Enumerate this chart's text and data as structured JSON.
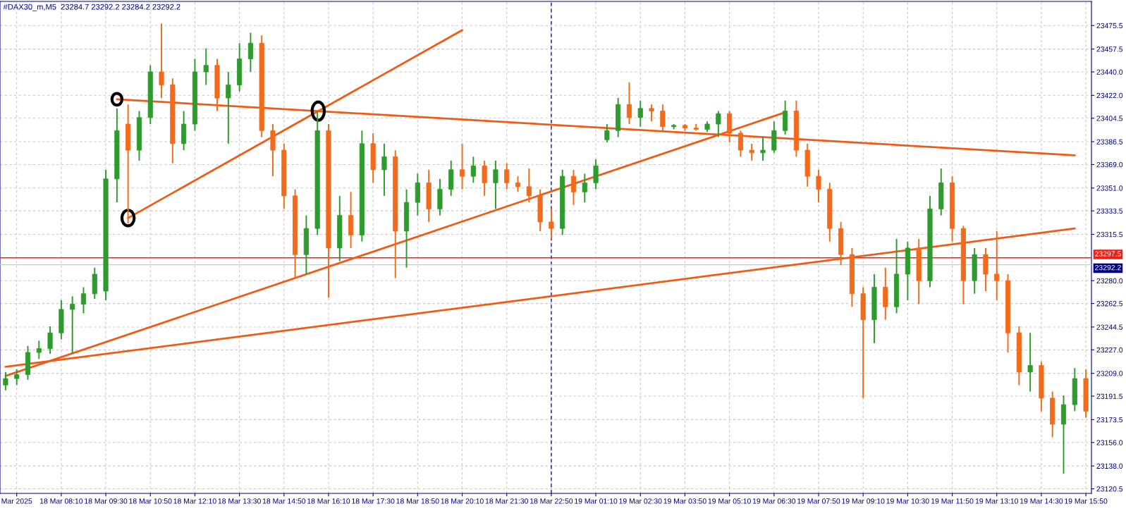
{
  "chart_data": {
    "type": "candlestick",
    "title": "#DAX30_m,M5  23284.7 23292.2 23284.2 23292.2",
    "categories": [
      null,
      "Mar 2025",
      null,
      null,
      null,
      "18 Mar 08:10",
      null,
      null,
      null,
      "18 Mar 09:30",
      null,
      null,
      null,
      "18 Mar 10:50",
      null,
      null,
      null,
      "18 Mar 12:10",
      null,
      null,
      null,
      "18 Mar 13:30",
      null,
      null,
      null,
      "18 Mar 14:50",
      null,
      null,
      null,
      "18 Mar 16:10",
      null,
      null,
      null,
      "18 Mar 17:30",
      null,
      null,
      null,
      "18 Mar 18:50",
      null,
      null,
      null,
      "18 Mar 20:10",
      null,
      null,
      null,
      "18 Mar 21:30",
      null,
      null,
      null,
      "18 Mar 22:50",
      null,
      null,
      null,
      "19 Mar 01:10",
      null,
      null,
      null,
      "19 Mar 02:30",
      null,
      null,
      null,
      "19 Mar 03:50",
      null,
      null,
      null,
      "19 Mar 05:10",
      null,
      null,
      null,
      "19 Mar 06:30",
      null,
      null,
      null,
      "19 Mar 07:50",
      null,
      null,
      null,
      "19 Mar 09:10",
      null,
      null,
      null,
      "19 Mar 10:30",
      null,
      null,
      null,
      "19 Mar 11:50",
      null,
      null,
      null,
      "19 Mar 13:10",
      null,
      null,
      null,
      "19 Mar 14:30",
      null,
      null,
      null,
      "19 Mar 15:50"
    ],
    "ohlc": [
      [
        23200,
        23210,
        23196,
        23205
      ],
      [
        23205,
        23212,
        23200,
        23208
      ],
      [
        23208,
        23230,
        23204,
        23225
      ],
      [
        23225,
        23234,
        23220,
        23228
      ],
      [
        23228,
        23245,
        23224,
        23240
      ],
      [
        23240,
        23265,
        23235,
        23258
      ],
      [
        23258,
        23268,
        23224,
        23262
      ],
      [
        23262,
        23275,
        23255,
        23270
      ],
      [
        23270,
        23290,
        23266,
        23285
      ],
      [
        23272,
        23365,
        23265,
        23358
      ],
      [
        23358,
        23412,
        23340,
        23395
      ],
      [
        23400,
        23415,
        23324,
        23380
      ],
      [
        23380,
        23410,
        23372,
        23405
      ],
      [
        23405,
        23445,
        23400,
        23440
      ],
      [
        23440,
        23477,
        23420,
        23430
      ],
      [
        23430,
        23435,
        23370,
        23385
      ],
      [
        23385,
        23410,
        23380,
        23400
      ],
      [
        23400,
        23450,
        23395,
        23440
      ],
      [
        23440,
        23458,
        23430,
        23445
      ],
      [
        23445,
        23450,
        23410,
        23420
      ],
      [
        23420,
        23440,
        23385,
        23430
      ],
      [
        23430,
        23462,
        23425,
        23450
      ],
      [
        23450,
        23470,
        23440,
        23462
      ],
      [
        23462,
        23468,
        23390,
        23395
      ],
      [
        23395,
        23400,
        23360,
        23380
      ],
      [
        23380,
        23385,
        23335,
        23345
      ],
      [
        23345,
        23350,
        23282,
        23300
      ],
      [
        23300,
        23330,
        23285,
        23320
      ],
      [
        23320,
        23410,
        23315,
        23395
      ],
      [
        23395,
        23400,
        23267,
        23305
      ],
      [
        23305,
        23345,
        23295,
        23330
      ],
      [
        23330,
        23348,
        23305,
        23315
      ],
      [
        23315,
        23395,
        23310,
        23385
      ],
      [
        23385,
        23393,
        23355,
        23365
      ],
      [
        23365,
        23385,
        23345,
        23375
      ],
      [
        23375,
        23380,
        23282,
        23318
      ],
      [
        23318,
        23350,
        23290,
        23340
      ],
      [
        23340,
        23362,
        23330,
        23355
      ],
      [
        23355,
        23365,
        23325,
        23335
      ],
      [
        23335,
        23358,
        23330,
        23350
      ],
      [
        23350,
        23372,
        23345,
        23365
      ],
      [
        23365,
        23385,
        23350,
        23360
      ],
      [
        23360,
        23375,
        23355,
        23368
      ],
      [
        23368,
        23372,
        23345,
        23355
      ],
      [
        23355,
        23372,
        23335,
        23365
      ],
      [
        23365,
        23370,
        23350,
        23355
      ],
      [
        23355,
        23360,
        23348,
        23352
      ],
      [
        23352,
        23366,
        23340,
        23345
      ],
      [
        23345,
        23350,
        23318,
        23325
      ],
      [
        23325,
        23335,
        23312,
        23320
      ],
      [
        23320,
        23365,
        23315,
        23360
      ],
      [
        23360,
        23365,
        23338,
        23348
      ],
      [
        23348,
        23362,
        23340,
        23355
      ],
      [
        23355,
        23373,
        23350,
        23368
      ],
      [
        23388,
        23400,
        23386,
        23395
      ],
      [
        23395,
        23420,
        23390,
        23415
      ],
      [
        23415,
        23432,
        23400,
        23405
      ],
      [
        23405,
        23418,
        23398,
        23412
      ],
      [
        23412,
        23415,
        23402,
        23410
      ],
      [
        23410,
        23415,
        23395,
        23398
      ],
      [
        23398,
        23400,
        23396,
        23399
      ],
      [
        23399,
        23400,
        23395,
        23397
      ],
      [
        23397,
        23400,
        23395,
        23396
      ],
      [
        23396,
        23402,
        23394,
        23400
      ],
      [
        23400,
        23410,
        23390,
        23408
      ],
      [
        23408,
        23410,
        23386,
        23393
      ],
      [
        23393,
        23395,
        23375,
        23380
      ],
      [
        23380,
        23385,
        23372,
        23378
      ],
      [
        23378,
        23390,
        23372,
        23380
      ],
      [
        23380,
        23402,
        23378,
        23395
      ],
      [
        23395,
        23418,
        23392,
        23410
      ],
      [
        23410,
        23418,
        23375,
        23380
      ],
      [
        23380,
        23385,
        23352,
        23360
      ],
      [
        23360,
        23365,
        23340,
        23350
      ],
      [
        23350,
        23355,
        23310,
        23320
      ],
      [
        23320,
        23325,
        23292,
        23300
      ],
      [
        23300,
        23305,
        23260,
        23270
      ],
      [
        23270,
        23275,
        23190,
        23250
      ],
      [
        23250,
        23285,
        23232,
        23275
      ],
      [
        23275,
        23290,
        23250,
        23260
      ],
      [
        23260,
        23312,
        23255,
        23285
      ],
      [
        23285,
        23310,
        23265,
        23305
      ],
      [
        23305,
        23312,
        23262,
        23280
      ],
      [
        23280,
        23345,
        23275,
        23335
      ],
      [
        23335,
        23366,
        23330,
        23355
      ],
      [
        23355,
        23360,
        23310,
        23320
      ],
      [
        23320,
        23322,
        23262,
        23280
      ],
      [
        23280,
        23305,
        23270,
        23300
      ],
      [
        23300,
        23305,
        23272,
        23285
      ],
      [
        23285,
        23318,
        23265,
        23280
      ],
      [
        23280,
        23285,
        23225,
        23240
      ],
      [
        23240,
        23245,
        23200,
        23210
      ],
      [
        23210,
        23240,
        23195,
        23215
      ],
      [
        23215,
        23218,
        23180,
        23190
      ],
      [
        23190,
        23195,
        23160,
        23170
      ],
      [
        23170,
        23192,
        23132,
        23185
      ],
      [
        23185,
        23213,
        23180,
        23205
      ],
      [
        23205,
        23212,
        23175,
        23180
      ]
    ],
    "colors": [
      "#2e9b2e",
      "#2e9b2e",
      "#2e9b2e",
      "#2e9b2e",
      "#2e9b2e",
      "#2e9b2e",
      "#2e9b2e",
      "#2e9b2e",
      "#2e9b2e",
      "#2e9b2e",
      "#2e9b2e",
      "#f26a1b",
      "#2e9b2e",
      "#2e9b2e",
      "#f26a1b",
      "#f26a1b",
      "#2e9b2e",
      "#2e9b2e",
      "#2e9b2e",
      "#f26a1b",
      "#2e9b2e",
      "#2e9b2e",
      "#2e9b2e",
      "#f26a1b",
      "#f26a1b",
      "#f26a1b",
      "#f26a1b",
      "#2e9b2e",
      "#2e9b2e",
      "#f26a1b",
      "#2e9b2e",
      "#f26a1b",
      "#2e9b2e",
      "#f26a1b",
      "#2e9b2e",
      "#f26a1b",
      "#2e9b2e",
      "#2e9b2e",
      "#f26a1b",
      "#2e9b2e",
      "#2e9b2e",
      "#f26a1b",
      "#2e9b2e",
      "#f26a1b",
      "#2e9b2e",
      "#f26a1b",
      "#f26a1b",
      "#f26a1b",
      "#f26a1b",
      "#f26a1b",
      "#2e9b2e",
      "#f26a1b",
      "#2e9b2e",
      "#2e9b2e",
      "#2e9b2e",
      "#2e9b2e",
      "#f26a1b",
      "#2e9b2e",
      "#f26a1b",
      "#f26a1b",
      "#2e9b2e",
      "#f26a1b",
      "#f26a1b",
      "#2e9b2e",
      "#2e9b2e",
      "#f26a1b",
      "#f26a1b",
      "#f26a1b",
      "#2e9b2e",
      "#2e9b2e",
      "#2e9b2e",
      "#f26a1b",
      "#f26a1b",
      "#f26a1b",
      "#f26a1b",
      "#f26a1b",
      "#f26a1b",
      "#f26a1b",
      "#2e9b2e",
      "#f26a1b",
      "#2e9b2e",
      "#2e9b2e",
      "#f26a1b",
      "#2e9b2e",
      "#2e9b2e",
      "#f26a1b",
      "#f26a1b",
      "#2e9b2e",
      "#f26a1b",
      "#f26a1b",
      "#f26a1b",
      "#f26a1b",
      "#2e9b2e",
      "#f26a1b",
      "#f26a1b",
      "#2e9b2e",
      "#2e9b2e",
      "#f26a1b"
    ],
    "series": [
      {
        "type": "line",
        "values": [
          null,
          null,
          null,
          null,
          null,
          null,
          null,
          null,
          null,
          null,
          23419,
          null,
          null,
          null,
          null,
          null,
          null,
          null,
          null,
          null,
          null,
          null,
          null,
          null,
          null,
          null,
          null,
          null,
          null,
          null,
          null,
          null,
          null,
          null,
          null,
          null,
          null,
          null,
          null,
          null,
          null,
          null,
          null,
          null,
          null,
          null,
          null,
          null,
          null,
          null,
          null,
          null,
          null,
          null,
          null,
          null,
          null,
          null,
          null,
          null,
          null,
          null,
          null,
          null,
          null,
          null,
          null,
          null,
          null,
          null,
          null,
          null,
          null,
          null,
          null,
          null,
          null,
          null,
          null,
          null,
          null,
          null,
          null,
          null,
          null,
          null,
          null,
          null,
          null,
          null,
          null,
          null,
          null,
          null,
          null,
          null,
          23376,
          null
        ],
        "color": "#f05a14"
      },
      {
        "type": "line",
        "values": [
          null,
          null,
          null,
          null,
          null,
          null,
          null,
          null,
          null,
          null,
          null,
          23328,
          null,
          null,
          null,
          null,
          null,
          null,
          null,
          null,
          null,
          null,
          null,
          null,
          null,
          null,
          null,
          null,
          null,
          null,
          null,
          null,
          null,
          null,
          null,
          null,
          null,
          null,
          null,
          null,
          null,
          23472,
          null,
          null,
          null,
          null,
          null,
          null,
          null,
          null,
          null,
          null,
          null,
          null,
          null,
          null,
          null,
          null,
          null,
          null,
          null,
          null,
          null,
          null,
          null,
          null,
          null,
          null,
          null,
          null,
          null,
          null,
          null,
          null,
          null,
          null,
          null,
          null,
          null,
          null,
          null,
          null,
          null,
          null,
          null,
          null,
          null,
          null,
          null,
          null,
          null,
          null,
          null,
          null,
          null,
          null,
          null,
          null
        ],
        "color": "#f05a14"
      },
      {
        "type": "line",
        "values": [
          23207,
          null,
          null,
          null,
          null,
          null,
          null,
          null,
          null,
          null,
          null,
          null,
          null,
          null,
          null,
          null,
          null,
          null,
          null,
          null,
          null,
          null,
          null,
          null,
          null,
          null,
          null,
          null,
          null,
          null,
          null,
          null,
          null,
          null,
          null,
          null,
          null,
          null,
          null,
          null,
          null,
          null,
          null,
          null,
          null,
          null,
          null,
          null,
          null,
          null,
          null,
          null,
          null,
          null,
          null,
          null,
          null,
          null,
          null,
          null,
          null,
          null,
          null,
          null,
          null,
          null,
          null,
          null,
          null,
          null,
          23409,
          null,
          null,
          null,
          null,
          null,
          null,
          null,
          null,
          null,
          null,
          null,
          null,
          null,
          null,
          null,
          null,
          null,
          null,
          null,
          null,
          null,
          null,
          null,
          null,
          null,
          null,
          null
        ],
        "color": "#f05a14"
      },
      {
        "type": "line",
        "values": [
          23214,
          null,
          null,
          null,
          null,
          null,
          null,
          null,
          null,
          null,
          null,
          null,
          null,
          null,
          null,
          null,
          null,
          null,
          null,
          null,
          null,
          null,
          null,
          null,
          null,
          null,
          null,
          null,
          null,
          null,
          null,
          null,
          null,
          null,
          null,
          null,
          null,
          null,
          null,
          null,
          null,
          null,
          null,
          null,
          null,
          null,
          null,
          null,
          null,
          null,
          null,
          null,
          null,
          null,
          null,
          null,
          null,
          null,
          null,
          null,
          null,
          null,
          null,
          null,
          null,
          null,
          null,
          null,
          null,
          null,
          null,
          null,
          null,
          null,
          null,
          null,
          null,
          null,
          null,
          null,
          null,
          null,
          null,
          null,
          null,
          null,
          null,
          null,
          null,
          null,
          null,
          null,
          null,
          null,
          null,
          null,
          23320,
          null
        ],
        "color": "#f05a14"
      }
    ],
    "ylim": [
      23117,
      23494
    ],
    "yticks": [
      {
        "value": 23120.5,
        "label": "23120.5"
      },
      {
        "value": 23138.0,
        "label": "23138.0"
      },
      {
        "value": 23156.0,
        "label": "23156.0"
      },
      {
        "value": 23173.5,
        "label": "23173.5"
      },
      {
        "value": 23191.5,
        "label": "23191.5"
      },
      {
        "value": 23209.0,
        "label": "23209.0"
      },
      {
        "value": 23227.0,
        "label": "23227.0"
      },
      {
        "value": 23244.5,
        "label": "23244.5"
      },
      {
        "value": 23262.5,
        "label": "23262.5"
      },
      {
        "value": 23280.0,
        "label": "23280.0"
      },
      {
        "value": 23315.5,
        "label": "23315.5"
      },
      {
        "value": 23333.5,
        "label": "23333.5"
      },
      {
        "value": 23351.0,
        "label": "23351.0"
      },
      {
        "value": 23369.0,
        "label": "23369.0"
      },
      {
        "value": 23386.5,
        "label": "23386.5"
      },
      {
        "value": 23404.5,
        "label": "23404.5"
      },
      {
        "value": 23422.0,
        "label": "23422.0"
      },
      {
        "value": 23440.0,
        "label": "23440.0"
      },
      {
        "value": 23457.5,
        "label": "23457.5"
      },
      {
        "value": 23475.5,
        "label": "23475.5"
      }
    ],
    "ref_lines": [
      {
        "axis": "y",
        "value": 23297.5,
        "label": "23297.5",
        "color": "#e8221b",
        "line_style": "solid"
      },
      {
        "axis": "y",
        "value": 23292.2,
        "label": "23292.2",
        "color": "#c8c8c8",
        "line_style": "solid"
      },
      {
        "axis": "x",
        "value": "18 Mar 22:50",
        "color": "#000080",
        "line_style": "dashed"
      }
    ],
    "grid": true
  }
}
